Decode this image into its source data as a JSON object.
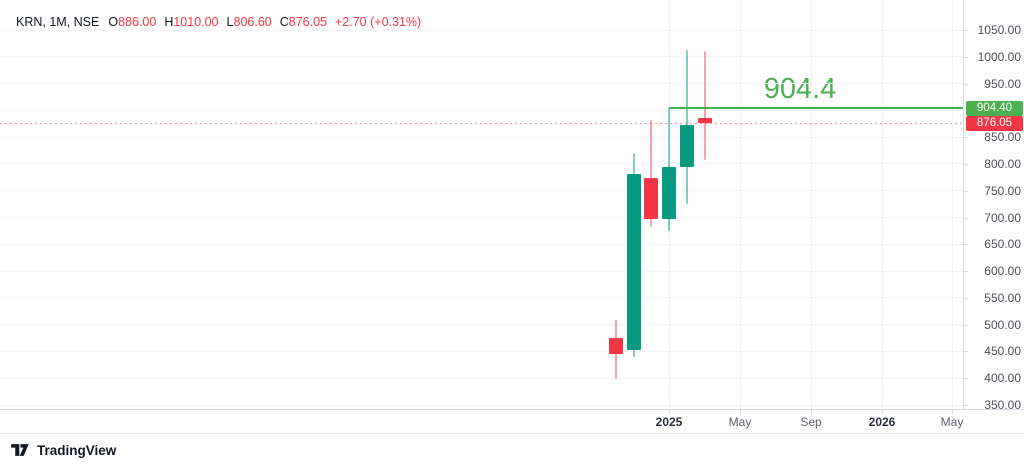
{
  "legend": {
    "symbol": "KRN, 1M, NSE",
    "ohlc": [
      {
        "label": "O",
        "value": "886.00"
      },
      {
        "label": "H",
        "value": "1010.00"
      },
      {
        "label": "L",
        "value": "806.60"
      },
      {
        "label": "C",
        "value": "876.05"
      }
    ],
    "change": "+2.70 (+0.31%)"
  },
  "chart_data": {
    "type": "candlestick",
    "title": "KRN, 1M, NSE",
    "symbol": "KRN",
    "interval": "1M",
    "exchange": "NSE",
    "ylim": [
      350,
      1050
    ],
    "grid_step": 50,
    "grid": true,
    "candles": [
      {
        "time": "Oct 2024",
        "open": 476,
        "high": 509,
        "low": 398,
        "close": 446
      },
      {
        "time": "Nov 2024",
        "open": 453,
        "high": 821,
        "low": 440,
        "close": 782
      },
      {
        "time": "Dec 2024",
        "open": 774,
        "high": 882,
        "low": 683,
        "close": 697
      },
      {
        "time": "Jan 2025",
        "open": 698,
        "high": 904.4,
        "low": 675,
        "close": 795
      },
      {
        "time": "Feb 2025",
        "open": 795,
        "high": 1012,
        "low": 725,
        "close": 873.35
      },
      {
        "time": "Mar 2025",
        "open": 886,
        "high": 1010,
        "low": 806.6,
        "close": 876.05
      }
    ],
    "horizontal_line": {
      "price": 904.4,
      "label": "904.4",
      "axis_tag": "904.40",
      "anchor_index": 3
    },
    "last_price": {
      "value": 876.05,
      "axis_tag": "876.05",
      "style": "dotted"
    },
    "colors": {
      "up": "#089981",
      "down": "#f23645",
      "line": "#4caf50",
      "last": "#f23645"
    }
  },
  "price_axis": {
    "labels": [
      "1050.00",
      "1000.00",
      "950.00",
      "850.00",
      "800.00",
      "750.00",
      "700.00",
      "650.00",
      "600.00",
      "550.00",
      "500.00",
      "450.00",
      "400.00",
      "350.00"
    ]
  },
  "time_axis": {
    "labels": [
      {
        "text": "2025",
        "bold": true,
        "month_index": 3
      },
      {
        "text": "May",
        "bold": false,
        "month_index": 7
      },
      {
        "text": "Sep",
        "bold": false,
        "month_index": 11
      },
      {
        "text": "2026",
        "bold": true,
        "month_index": 15
      },
      {
        "text": "May",
        "bold": false,
        "month_index": 19
      }
    ]
  },
  "footer": {
    "brand": "TradingView"
  }
}
